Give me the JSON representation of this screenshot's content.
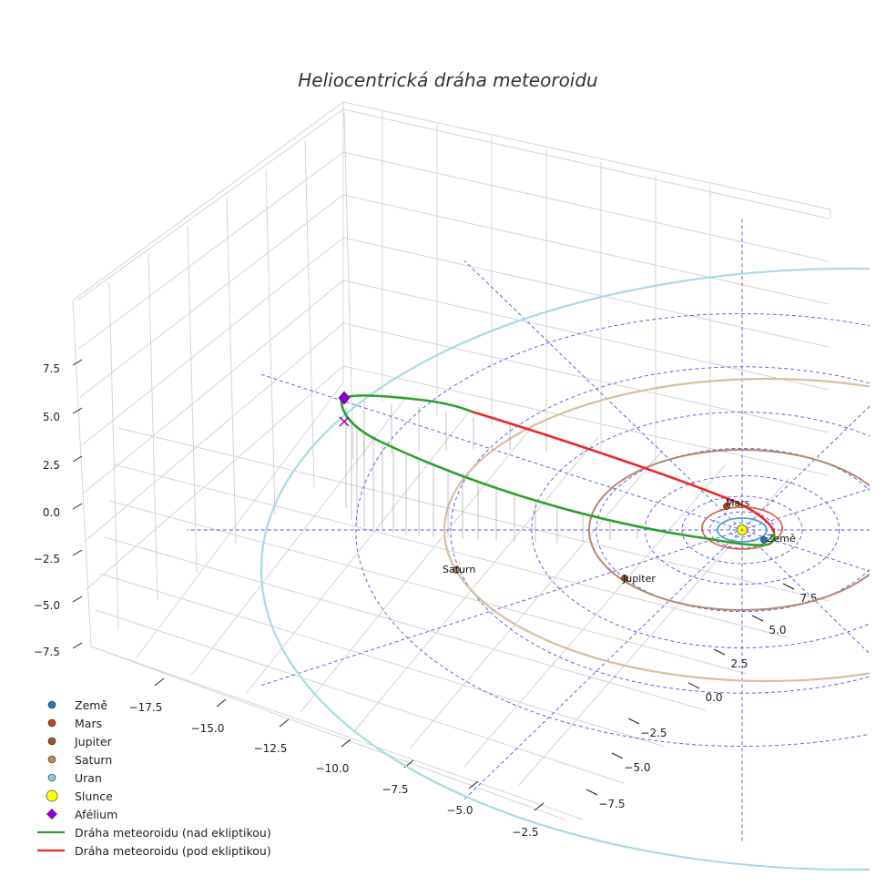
{
  "chart_data": {
    "type": "3d-orbit",
    "title": "Heliocentrická dráha meteoroidu",
    "axes": {
      "x_ticks": [
        "−17.5",
        "−15.0",
        "−12.5",
        "−10.0",
        "−7.5",
        "−5.0",
        "−2.5"
      ],
      "y_ticks": [
        "−7.5",
        "−5.0",
        "−2.5",
        "0.0",
        "2.5",
        "5.0",
        "7.5"
      ],
      "z_ticks": [
        "7.5",
        "5.0",
        "2.5",
        "0.0",
        "−2.5",
        "−5.0",
        "−7.5"
      ]
    },
    "planets": [
      {
        "name": "Země",
        "label": "Země",
        "orbit_radius_au": 1.0,
        "color": "#1f77b4",
        "orbit_color": "#4a9fd6"
      },
      {
        "name": "Mars",
        "label": "Mars",
        "orbit_radius_au": 1.52,
        "color": "#c1440e",
        "orbit_color": "#d06a44"
      },
      {
        "name": "Jupiter",
        "label": "Jupiter",
        "orbit_radius_au": 5.2,
        "color": "#a0522d",
        "orbit_color": "#b8876a"
      },
      {
        "name": "Saturn",
        "label": "Saturn",
        "orbit_radius_au": 9.58,
        "color": "#c08a5a",
        "orbit_color": "#d8bfa0"
      },
      {
        "name": "Uran",
        "label": "",
        "orbit_radius_au": 19.2,
        "color": "#87cee0",
        "orbit_color": "#a8dbe6"
      }
    ],
    "sun": {
      "name": "Slunce",
      "color": "#ffff00"
    },
    "aphelion": {
      "name": "Afélium",
      "color": "#8b00cc"
    },
    "meteoroid_orbit": {
      "segment_above": {
        "name": "Dráha meteoroidu (nad ekliptikou)",
        "color": "#2ca02c"
      },
      "segment_below": {
        "name": "Dráha meteoroidu (pod ekliptikou)",
        "color": "#e8282b"
      }
    },
    "legend": [
      {
        "label": "Země",
        "marker": "dot",
        "color": "#1f77b4"
      },
      {
        "label": "Mars",
        "marker": "dot",
        "color": "#c1440e"
      },
      {
        "label": "Jupiter",
        "marker": "dot",
        "color": "#a0522d"
      },
      {
        "label": "Saturn",
        "marker": "dot",
        "color": "#c08a5a"
      },
      {
        "label": "Uran",
        "marker": "dot",
        "color": "#87cee0"
      },
      {
        "label": "Slunce",
        "marker": "sun",
        "color": "#ffff00"
      },
      {
        "label": "Afélium",
        "marker": "diamond",
        "color": "#8b00cc"
      },
      {
        "label": "Dráha meteoroidu (nad ekliptikou)",
        "marker": "line",
        "color": "#2ca02c"
      },
      {
        "label": "Dráha meteoroidu (pod ekliptikou)",
        "marker": "line",
        "color": "#e8282b"
      }
    ],
    "grid": true,
    "legend_position": "bottom-left"
  }
}
